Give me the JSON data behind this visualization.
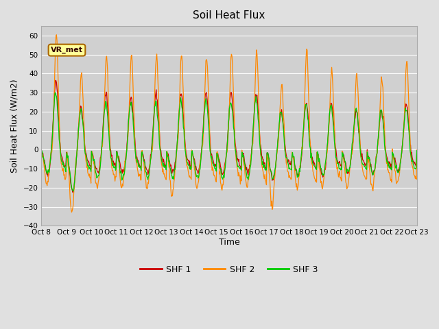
{
  "title": "Soil Heat Flux",
  "ylabel": "Soil Heat Flux (W/m2)",
  "xlabel": "Time",
  "ylim": [
    -40,
    65
  ],
  "yticks": [
    -40,
    -30,
    -20,
    -10,
    0,
    10,
    20,
    30,
    40,
    50,
    60
  ],
  "xtick_labels": [
    "Oct 8",
    "Oct 9",
    "Oct 10",
    "Oct 11",
    "Oct 12",
    "Oct 13",
    "Oct 14",
    "Oct 15",
    "Oct 16",
    "Oct 17",
    "Oct 18",
    "Oct 19",
    "Oct 20",
    "Oct 21",
    "Oct 22",
    "Oct 23"
  ],
  "color_shf1": "#cc0000",
  "color_shf2": "#ff8800",
  "color_shf3": "#00cc00",
  "bg_color": "#e0e0e0",
  "plot_bg_color": "#d0d0d0",
  "annotation_text": "VR_met",
  "legend_labels": [
    "SHF 1",
    "SHF 2",
    "SHF 3"
  ],
  "n_days": 15,
  "pts_per_day": 48
}
